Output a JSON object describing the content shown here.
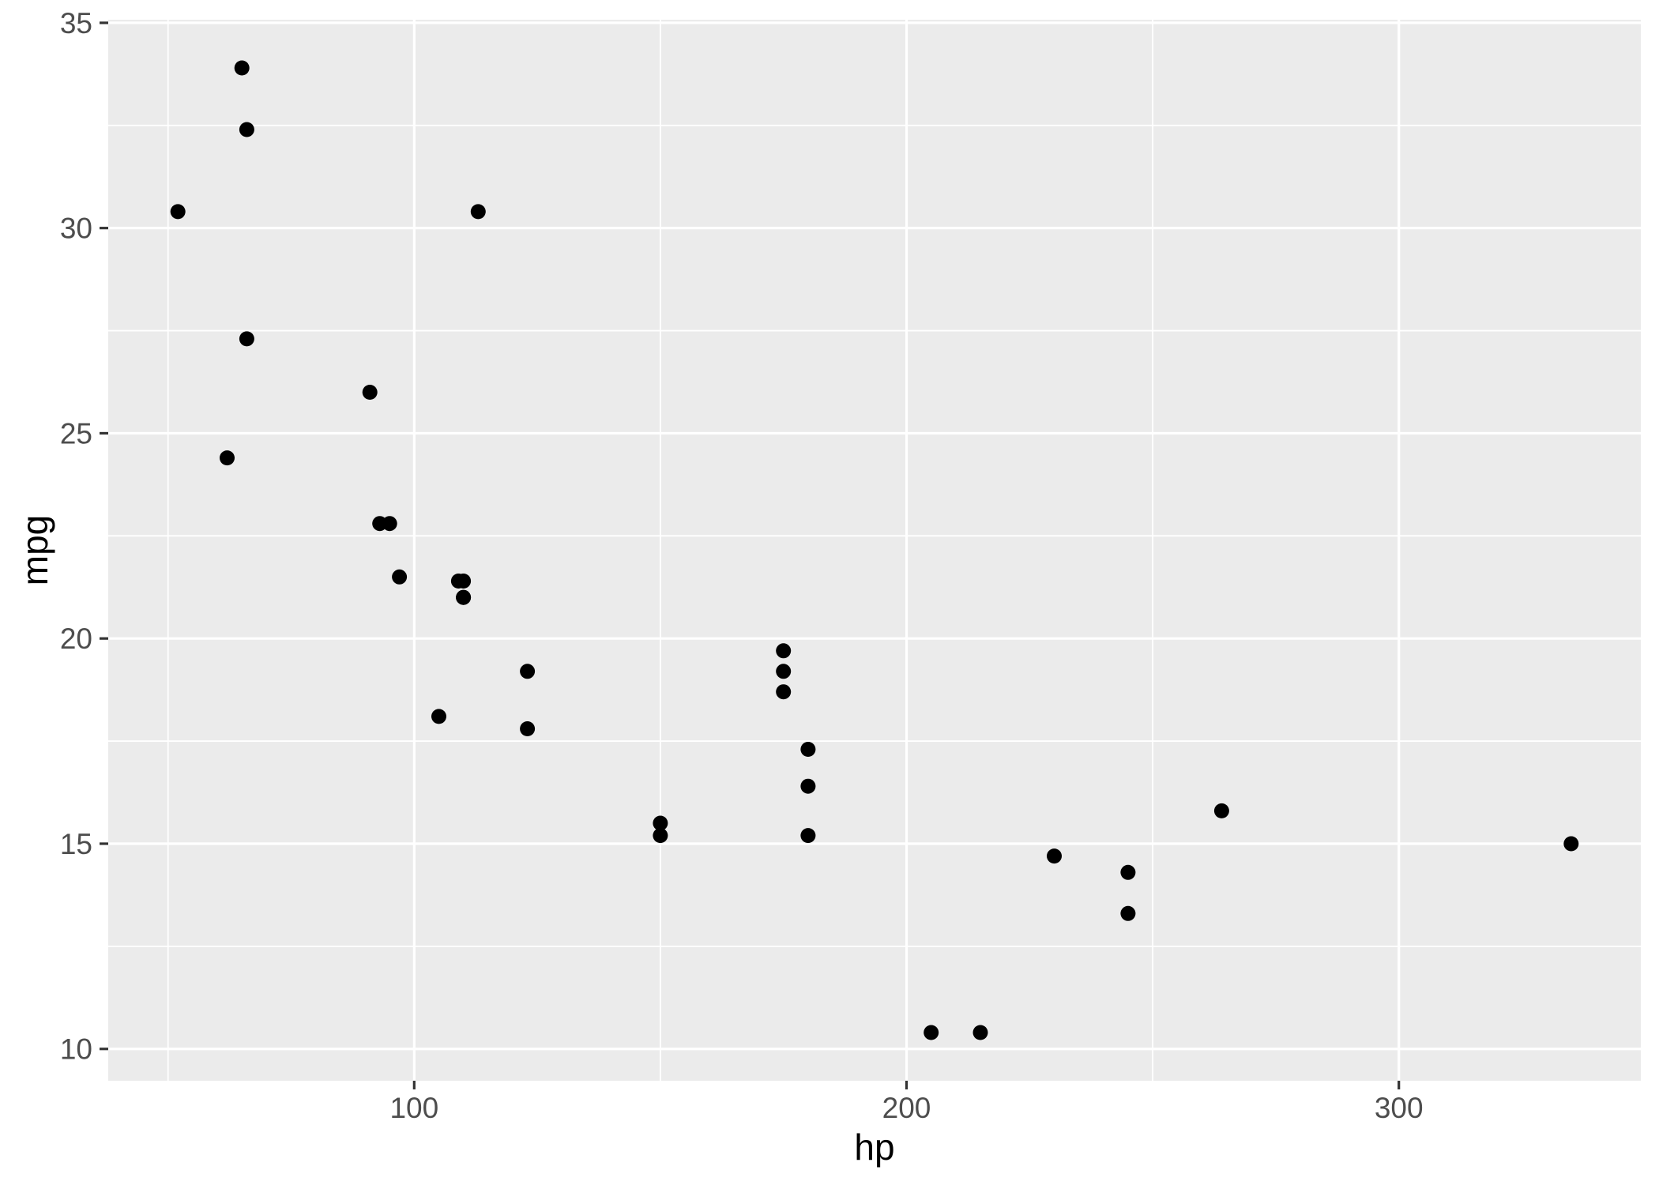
{
  "chart_data": {
    "type": "scatter",
    "title": "",
    "xlabel": "hp",
    "ylabel": "mpg",
    "x_ticks": [
      100,
      200,
      300
    ],
    "y_ticks": [
      10,
      15,
      20,
      25,
      30,
      35
    ],
    "x_minor_ticks": [
      50,
      150,
      250,
      350
    ],
    "y_minor_ticks": [
      12.5,
      17.5,
      22.5,
      27.5,
      32.5
    ],
    "xlim": [
      37.85,
      349.15
    ],
    "ylim": [
      9.225,
      35.075
    ],
    "grid": true,
    "legend_position": "none",
    "series": [
      {
        "name": "points",
        "points": [
          [
            110,
            21.0
          ],
          [
            110,
            21.0
          ],
          [
            93,
            22.8
          ],
          [
            110,
            21.4
          ],
          [
            175,
            18.7
          ],
          [
            105,
            18.1
          ],
          [
            245,
            14.3
          ],
          [
            62,
            24.4
          ],
          [
            95,
            22.8
          ],
          [
            123,
            19.2
          ],
          [
            123,
            17.8
          ],
          [
            180,
            16.4
          ],
          [
            180,
            17.3
          ],
          [
            180,
            15.2
          ],
          [
            205,
            10.4
          ],
          [
            215,
            10.4
          ],
          [
            230,
            14.7
          ],
          [
            66,
            32.4
          ],
          [
            52,
            30.4
          ],
          [
            65,
            33.9
          ],
          [
            97,
            21.5
          ],
          [
            150,
            15.5
          ],
          [
            150,
            15.2
          ],
          [
            245,
            13.3
          ],
          [
            175,
            19.2
          ],
          [
            66,
            27.3
          ],
          [
            91,
            26.0
          ],
          [
            113,
            30.4
          ],
          [
            264,
            15.8
          ],
          [
            175,
            19.7
          ],
          [
            335,
            15.0
          ],
          [
            109,
            21.4
          ]
        ]
      }
    ]
  },
  "colors": {
    "page_background": "#FFFFFF",
    "panel_background": "#EBEBEB",
    "gridline": "#FFFFFF",
    "point": "#000000",
    "tick_label": "#4D4D4D",
    "axis_title": "#000000",
    "tick_mark": "#333333"
  }
}
